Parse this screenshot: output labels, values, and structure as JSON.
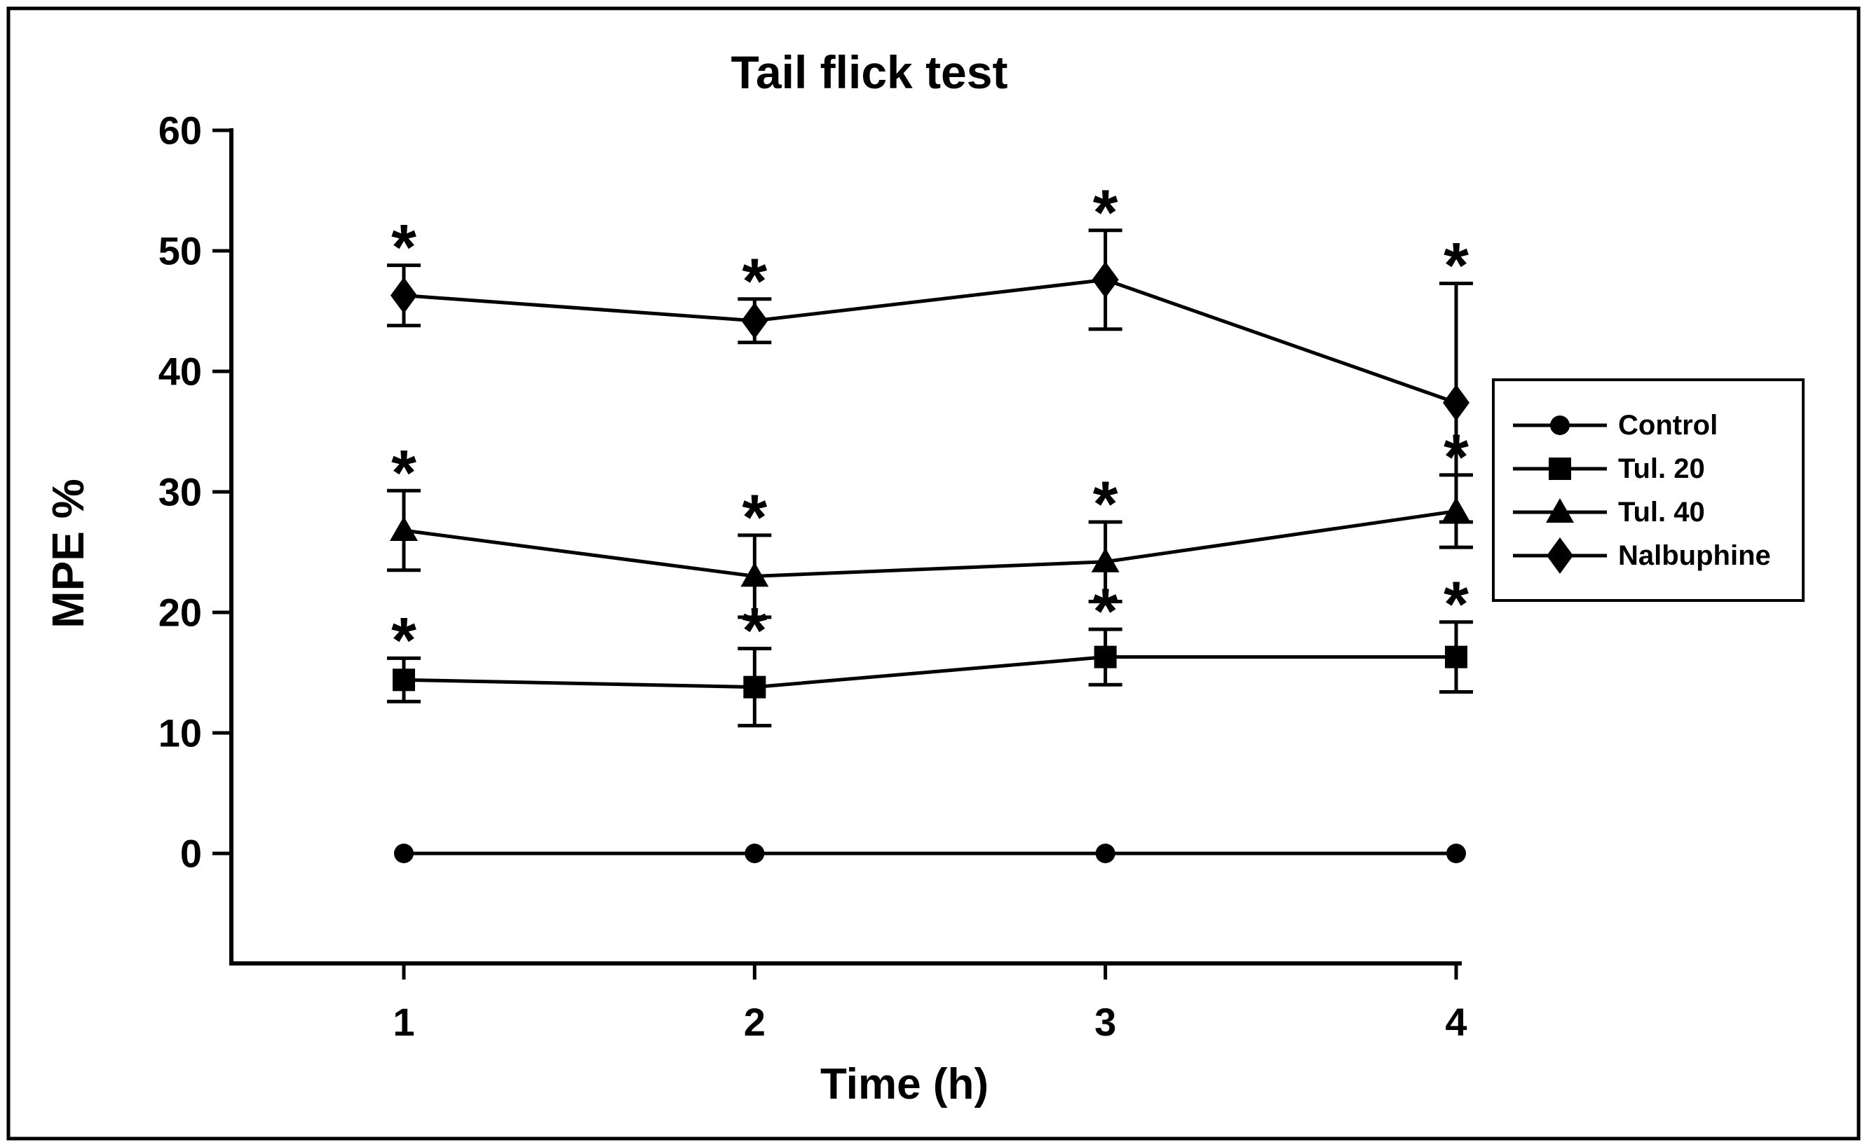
{
  "chart_data": {
    "type": "line",
    "title": "Tail flick test",
    "xlabel": "Time (h)",
    "ylabel": "MPE %",
    "x": [
      1,
      2,
      3,
      4
    ],
    "xtick_labels": [
      "1",
      "2",
      "3",
      "4"
    ],
    "yticks": [
      0,
      10,
      20,
      30,
      40,
      50,
      60
    ],
    "ytick_labels": [
      "0",
      "10",
      "20",
      "30",
      "40",
      "50",
      "60"
    ],
    "ylim": [
      0,
      60
    ],
    "xlim": [
      1,
      4
    ],
    "grid": false,
    "legend_position": "right",
    "foreground_color": "#000000",
    "background_color": "#ffffff",
    "significance_marker": "*",
    "series": [
      {
        "name": "Control",
        "marker": "circle",
        "values": [
          0,
          0,
          0,
          0
        ],
        "errors": [
          0,
          0,
          0,
          0
        ],
        "significant": [
          false,
          false,
          false,
          false
        ]
      },
      {
        "name": "Tul. 20",
        "marker": "square",
        "values": [
          14.4,
          13.8,
          16.3,
          16.3
        ],
        "errors": [
          1.8,
          3.2,
          2.3,
          2.9
        ],
        "significant": [
          true,
          true,
          true,
          true
        ]
      },
      {
        "name": "Tul. 40",
        "marker": "triangle",
        "values": [
          26.8,
          23.0,
          24.2,
          28.4
        ],
        "errors": [
          3.3,
          3.4,
          3.3,
          3.0
        ],
        "significant": [
          true,
          true,
          true,
          true
        ]
      },
      {
        "name": "Nalbuphine",
        "marker": "diamond",
        "values": [
          46.3,
          44.2,
          47.6,
          37.4
        ],
        "errors": [
          2.5,
          1.8,
          4.1,
          9.9
        ],
        "significant": [
          true,
          true,
          true,
          true
        ]
      }
    ]
  }
}
